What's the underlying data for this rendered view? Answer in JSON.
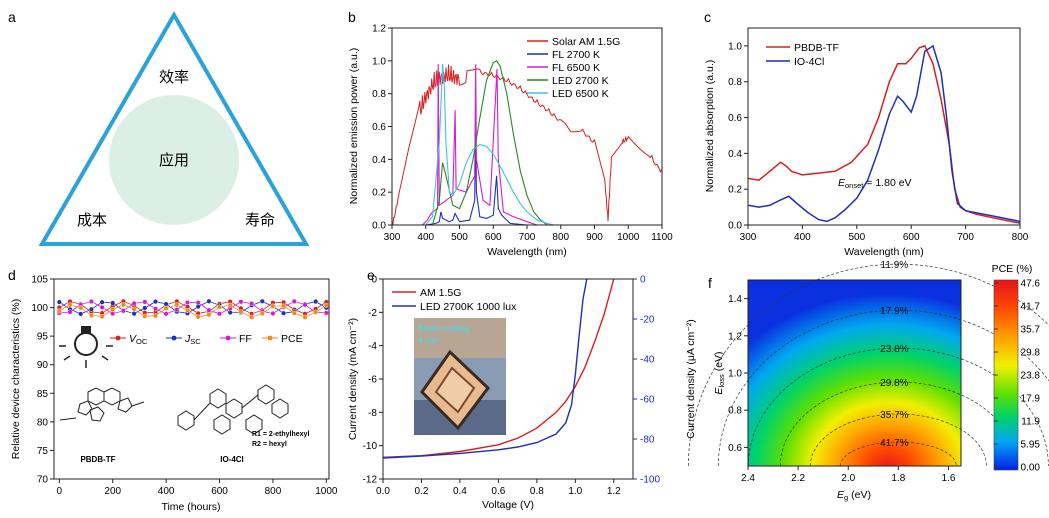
{
  "chart_data": [
    {
      "panel": "a",
      "type": "diagram",
      "center": "应用",
      "corners": [
        "效率",
        "成本",
        "寿命"
      ]
    },
    {
      "panel": "b",
      "type": "line",
      "xlabel": "Wavelength (nm)",
      "ylabel": "Normalized emission power (a.u.)",
      "xlim": [
        300,
        1100
      ],
      "ylim": [
        0,
        1.2
      ],
      "xticks": [
        "300",
        "400",
        "500",
        "600",
        "700",
        "800",
        "900",
        "1000",
        "1100"
      ],
      "yticks": [
        "0.0",
        "0.2",
        "0.4",
        "0.6",
        "0.8",
        "1.0",
        "1.2"
      ],
      "series": [
        {
          "name": "Solar AM 1.5G",
          "color": "#d62020",
          "x": [
            300,
            320,
            350,
            380,
            400,
            420,
            440,
            460,
            480,
            500,
            530,
            560,
            600,
            640,
            680,
            720,
            760,
            800,
            830,
            860,
            900,
            930,
            940,
            950,
            980,
            1000,
            1030,
            1060,
            1100
          ],
          "y": [
            0.0,
            0.2,
            0.5,
            0.75,
            0.86,
            0.93,
            0.97,
            0.99,
            0.98,
            0.97,
            0.96,
            0.95,
            0.93,
            0.9,
            0.85,
            0.78,
            0.72,
            0.65,
            0.58,
            0.6,
            0.52,
            0.3,
            0.05,
            0.42,
            0.52,
            0.55,
            0.5,
            0.45,
            0.34
          ]
        },
        {
          "name": "FL 2700 K",
          "color": "#1f2fb8",
          "x": [
            400,
            430,
            440,
            445,
            450,
            470,
            480,
            487,
            500,
            530,
            545,
            548,
            550,
            560,
            580,
            600,
            610,
            612,
            615,
            625,
            640,
            650,
            700
          ],
          "y": [
            0.0,
            0.01,
            0.02,
            0.08,
            0.04,
            0.02,
            0.03,
            0.07,
            0.02,
            0.03,
            0.15,
            0.62,
            0.2,
            0.05,
            0.04,
            0.06,
            0.3,
            0.22,
            0.1,
            0.06,
            0.03,
            0.01,
            0.0
          ]
        },
        {
          "name": "FL 6500 K",
          "color": "#d21cd2",
          "x": [
            390,
            405,
            410,
            420,
            435,
            437,
            440,
            460,
            480,
            487,
            490,
            520,
            545,
            548,
            550,
            570,
            590,
            611,
            615,
            630,
            660,
            700,
            730
          ],
          "y": [
            0.0,
            0.03,
            0.05,
            0.08,
            0.1,
            0.98,
            0.12,
            0.15,
            0.18,
            0.7,
            0.22,
            0.2,
            0.3,
            0.98,
            0.4,
            0.15,
            0.12,
            0.95,
            0.4,
            0.08,
            0.05,
            0.02,
            0.0
          ]
        },
        {
          "name": "LED 2700 K",
          "color": "#2a8a20",
          "x": [
            420,
            440,
            450,
            460,
            480,
            500,
            520,
            540,
            560,
            580,
            600,
            610,
            620,
            640,
            660,
            680,
            700,
            720,
            740,
            760
          ],
          "y": [
            0.0,
            0.15,
            0.38,
            0.3,
            0.12,
            0.1,
            0.2,
            0.4,
            0.65,
            0.88,
            0.99,
            1.0,
            0.97,
            0.8,
            0.55,
            0.33,
            0.18,
            0.08,
            0.03,
            0.0
          ]
        },
        {
          "name": "LED 6500 K",
          "color": "#3ec2e8",
          "x": [
            400,
            420,
            440,
            450,
            455,
            460,
            470,
            480,
            500,
            520,
            540,
            560,
            580,
            600,
            620,
            640,
            660,
            680,
            700,
            730,
            760,
            780
          ],
          "y": [
            0.0,
            0.05,
            0.5,
            0.98,
            0.85,
            0.5,
            0.2,
            0.18,
            0.25,
            0.38,
            0.46,
            0.49,
            0.48,
            0.43,
            0.36,
            0.28,
            0.2,
            0.13,
            0.08,
            0.03,
            0.01,
            0.0
          ]
        }
      ]
    },
    {
      "panel": "c",
      "type": "line",
      "xlabel": "Wavelength (nm)",
      "ylabel": "Normalized absorption (a.u.)",
      "xlim": [
        300,
        800
      ],
      "ylim": [
        0,
        1.1
      ],
      "xticks": [
        "300",
        "400",
        "500",
        "600",
        "700",
        "800"
      ],
      "yticks": [
        "0.0",
        "0.2",
        "0.4",
        "0.6",
        "0.8",
        "1.0"
      ],
      "annotation_prefix": "E",
      "annotation_sub": "onset",
      "annotation_value": " = 1.80 eV",
      "series": [
        {
          "name": "PBDB-TF",
          "color": "#d62020",
          "x": [
            300,
            320,
            340,
            360,
            370,
            380,
            400,
            430,
            460,
            490,
            520,
            540,
            560,
            575,
            590,
            600,
            615,
            625,
            640,
            655,
            670,
            680,
            690,
            700,
            720,
            750,
            800
          ],
          "y": [
            0.26,
            0.25,
            0.3,
            0.35,
            0.33,
            0.3,
            0.28,
            0.29,
            0.3,
            0.35,
            0.45,
            0.6,
            0.8,
            0.9,
            0.9,
            0.93,
            0.99,
            1.0,
            0.9,
            0.7,
            0.45,
            0.2,
            0.1,
            0.08,
            0.06,
            0.04,
            0.01
          ]
        },
        {
          "name": "IO-4Cl",
          "color": "#1f2fb8",
          "x": [
            300,
            320,
            340,
            360,
            375,
            390,
            410,
            430,
            445,
            460,
            480,
            500,
            520,
            540,
            560,
            575,
            585,
            600,
            610,
            625,
            640,
            655,
            665,
            675,
            685,
            700,
            750,
            800
          ],
          "y": [
            0.11,
            0.1,
            0.11,
            0.14,
            0.16,
            0.12,
            0.07,
            0.03,
            0.02,
            0.04,
            0.09,
            0.15,
            0.25,
            0.42,
            0.62,
            0.72,
            0.69,
            0.63,
            0.72,
            0.97,
            1.0,
            0.85,
            0.6,
            0.3,
            0.12,
            0.08,
            0.05,
            0.02
          ]
        }
      ]
    },
    {
      "panel": "d",
      "type": "line",
      "xlabel": "Time (hours)",
      "ylabel": "Relative device characteristics (%)",
      "xlim": [
        -20,
        1010
      ],
      "ylim": [
        70,
        105
      ],
      "xticks": [
        "0",
        "200",
        "400",
        "600",
        "800",
        "1000"
      ],
      "yticks": [
        "70",
        "75",
        "80",
        "85",
        "90",
        "95",
        "100",
        "105"
      ],
      "structure_labels": [
        "PBDB-TF",
        "IO-4Cl",
        "R1 = 2-ethylhexyl",
        "R2 = hexyl"
      ],
      "series": [
        {
          "name": "VOC",
          "label_main": "V",
          "label_sub": "OC",
          "color": "#d62020",
          "marker": "o"
        },
        {
          "name": "JSC",
          "label_main": "J",
          "label_sub": "SC",
          "color": "#1f2fb8",
          "marker": "o"
        },
        {
          "name": "FF",
          "label_main": "FF",
          "label_sub": "",
          "color": "#d21cd2",
          "marker": "o"
        },
        {
          "name": "PCE",
          "label_main": "PCE",
          "label_sub": "",
          "color": "#f08a1c",
          "marker": "o"
        }
      ]
    },
    {
      "panel": "e",
      "type": "line",
      "xlabel": "Voltage (V)",
      "ylabel": "Current density (mA cm⁻²)",
      "ylabel2": "Current density (μA cm⁻²)",
      "xlim": [
        0,
        1.3
      ],
      "ylim": [
        -12,
        0
      ],
      "ylim2": [
        -100,
        0
      ],
      "xticks": [
        "0.0",
        "0.2",
        "0.4",
        "0.6",
        "0.8",
        "1.0",
        "1.2"
      ],
      "yticks": [
        "-12",
        "-10",
        "-8",
        "-6",
        "-4",
        "-2",
        "0"
      ],
      "yticks2": [
        "-100",
        "-80",
        "-60",
        "-40",
        "-20",
        "0"
      ],
      "inset_text": [
        "Blade coating",
        "4 cm²"
      ],
      "series": [
        {
          "name": "AM 1.5G",
          "color": "#d62020",
          "axis": "left",
          "x": [
            0.0,
            0.2,
            0.4,
            0.6,
            0.7,
            0.8,
            0.9,
            0.95,
            1.0,
            1.05,
            1.1,
            1.15,
            1.2
          ],
          "y": [
            -10.7,
            -10.6,
            -10.35,
            -9.95,
            -9.55,
            -8.95,
            -8.0,
            -7.35,
            -6.45,
            -5.3,
            -3.8,
            -2.1,
            0.0
          ]
        },
        {
          "name": "LED 2700K 1000 lux",
          "color": "#1f2fb8",
          "axis": "right",
          "x": [
            0.0,
            0.2,
            0.4,
            0.6,
            0.7,
            0.8,
            0.9,
            0.95,
            0.98,
            1.0,
            1.02,
            1.04,
            1.06
          ],
          "y": [
            -89.5,
            -88.5,
            -87.2,
            -85.4,
            -84.0,
            -81.8,
            -77.5,
            -72.0,
            -63.0,
            -48.0,
            -28.0,
            -10.0,
            0.0
          ]
        }
      ]
    },
    {
      "panel": "f",
      "type": "heatmap",
      "xlabel_main": "E",
      "xlabel_sub": "g",
      "xlabel_unit": " (eV)",
      "ylabel_main": "E",
      "ylabel_sub": "loss",
      "ylabel_unit": " (eV)",
      "xlim": [
        2.4,
        1.55
      ],
      "ylim": [
        0.5,
        1.5
      ],
      "xticks": [
        "2.4",
        "2.2",
        "2.0",
        "1.8",
        "1.6"
      ],
      "yticks": [
        "0.6",
        "0.8",
        "1.0",
        "1.2",
        "1.4"
      ],
      "contour_labels": [
        "11.9%",
        "17.9%",
        "23.8%",
        "29.8%",
        "35.7%",
        "41.7%"
      ],
      "colorbar_title": "PCE (%)",
      "colorbar_ticks": [
        "47.6",
        "41.7",
        "35.7",
        "29.8",
        "23.8",
        "17.9",
        "11.9",
        "5.95",
        "0.00"
      ],
      "peak": {
        "Eg": 1.8,
        "Eloss": 0.5,
        "PCE": 47.6
      }
    }
  ]
}
